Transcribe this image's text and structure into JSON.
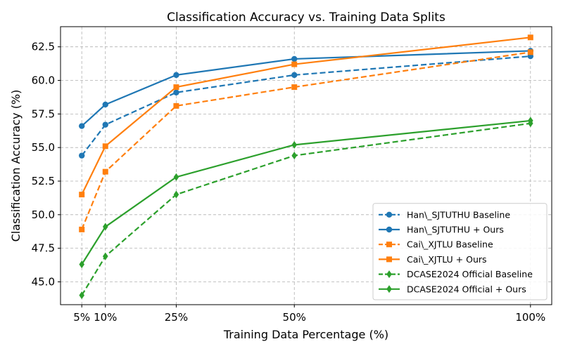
{
  "chart_data": {
    "type": "line",
    "title": "Classification Accuracy vs. Training Data Splits",
    "xlabel": "Training Data Percentage (%)",
    "ylabel": "Classification Accuracy (%)",
    "x": [
      5,
      10,
      25,
      50,
      100
    ],
    "x_tick_labels": [
      "5%",
      "10%",
      "25%",
      "50%",
      "100%"
    ],
    "xlim": [
      0.5,
      104.5
    ],
    "ylim": [
      43.3,
      64.0
    ],
    "y_ticks": [
      45.0,
      47.5,
      50.0,
      52.5,
      55.0,
      57.5,
      60.0,
      62.5
    ],
    "y_tick_labels": [
      "45.0",
      "47.5",
      "50.0",
      "52.5",
      "55.0",
      "57.5",
      "60.0",
      "62.5"
    ],
    "grid": true,
    "legend_position": "bottom-right",
    "series": [
      {
        "name": "Han\\_SJTUTHU Baseline",
        "color": "#1f77b4",
        "marker": "circle",
        "linestyle": "dashed",
        "values": [
          54.4,
          56.7,
          59.1,
          60.4,
          61.8
        ]
      },
      {
        "name": "Han\\_SJTUTHU + Ours",
        "color": "#1f77b4",
        "marker": "circle",
        "linestyle": "solid",
        "values": [
          56.6,
          58.2,
          60.4,
          61.6,
          62.2
        ]
      },
      {
        "name": "Cai\\_XJTLU Baseline",
        "color": "#ff7f0e",
        "marker": "square",
        "linestyle": "dashed",
        "values": [
          48.9,
          53.2,
          58.1,
          59.5,
          62.1
        ]
      },
      {
        "name": "Cai\\_XJTLU + Ours",
        "color": "#ff7f0e",
        "marker": "square",
        "linestyle": "solid",
        "values": [
          51.5,
          55.1,
          59.5,
          61.2,
          63.2
        ]
      },
      {
        "name": "DCASE2024 Official Baseline",
        "color": "#2ca02c",
        "marker": "diamond",
        "linestyle": "dashed",
        "values": [
          44.0,
          46.9,
          51.5,
          54.4,
          56.8
        ]
      },
      {
        "name": "DCASE2024 Official + Ours",
        "color": "#2ca02c",
        "marker": "diamond",
        "linestyle": "solid",
        "values": [
          46.3,
          49.1,
          52.8,
          55.2,
          57.0
        ]
      }
    ]
  }
}
